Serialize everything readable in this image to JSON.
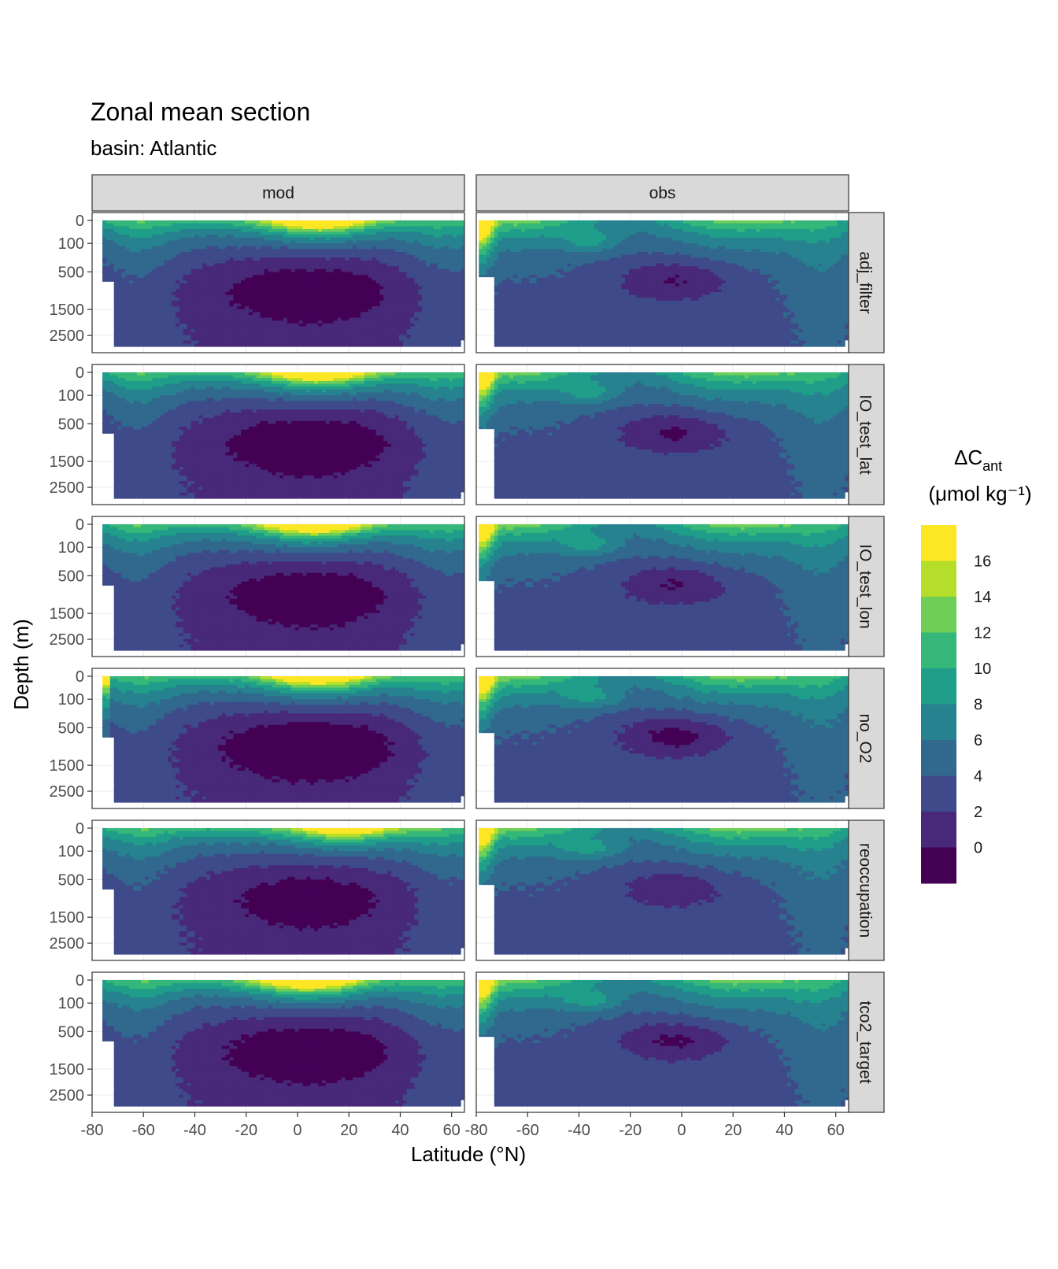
{
  "chart_data": {
    "type": "heatmap",
    "title": "Zonal mean section",
    "subtitle": "basin: Atlantic",
    "xlabel": "Latitude (°N)",
    "ylabel": "Depth (m)",
    "xlim": [
      -80,
      65
    ],
    "x_ticks": [
      -80,
      -60,
      -40,
      -20,
      0,
      20,
      40,
      60
    ],
    "y_ticks": [
      0,
      100,
      500,
      1500,
      2500
    ],
    "y_scale": "reversed square-root",
    "ylim": [
      0,
      3000
    ],
    "column_facets": [
      "mod",
      "obs"
    ],
    "row_facets": [
      "adj_filter",
      "IO_test_lat",
      "IO_test_lon",
      "no_O2",
      "reoccupation",
      "tco2_target"
    ],
    "grid": true,
    "legend": {
      "placement": "right",
      "title_main": "ΔC",
      "title_sub": "ant",
      "title_units": "(μmol kg⁻¹)",
      "labels": [
        "16",
        "14",
        "12",
        "10",
        "8",
        "6",
        "4",
        "2",
        "0"
      ],
      "colors": [
        "#440154",
        "#482878",
        "#3e4a89",
        "#31688e",
        "#26828e",
        "#1f9e89",
        "#35b779",
        "#6ece58",
        "#b5de2b",
        "#fde725"
      ],
      "breaks": [
        -2,
        0,
        2,
        4,
        6,
        8,
        10,
        12,
        14,
        16,
        18
      ]
    },
    "model_field": {
      "description_values": "approximate ΔCant (μmol/kg) read from contour colours",
      "surface_max": [
        {
          "panel": "adj_filter",
          "peak_lat": 8,
          "peak_value": 17
        },
        {
          "panel": "IO_test_lat",
          "peak_lat": 8,
          "peak_value": 17
        },
        {
          "panel": "IO_test_lon",
          "peak_lat": 6,
          "peak_value": 17
        },
        {
          "panel": "no_O2",
          "peak_lat": 8,
          "peak_value": 16
        },
        {
          "panel": "reoccupation",
          "peak_lat": 20,
          "peak_value": 13
        },
        {
          "panel": "tco2_target",
          "peak_lat": 6,
          "peak_value": 17
        }
      ]
    }
  }
}
